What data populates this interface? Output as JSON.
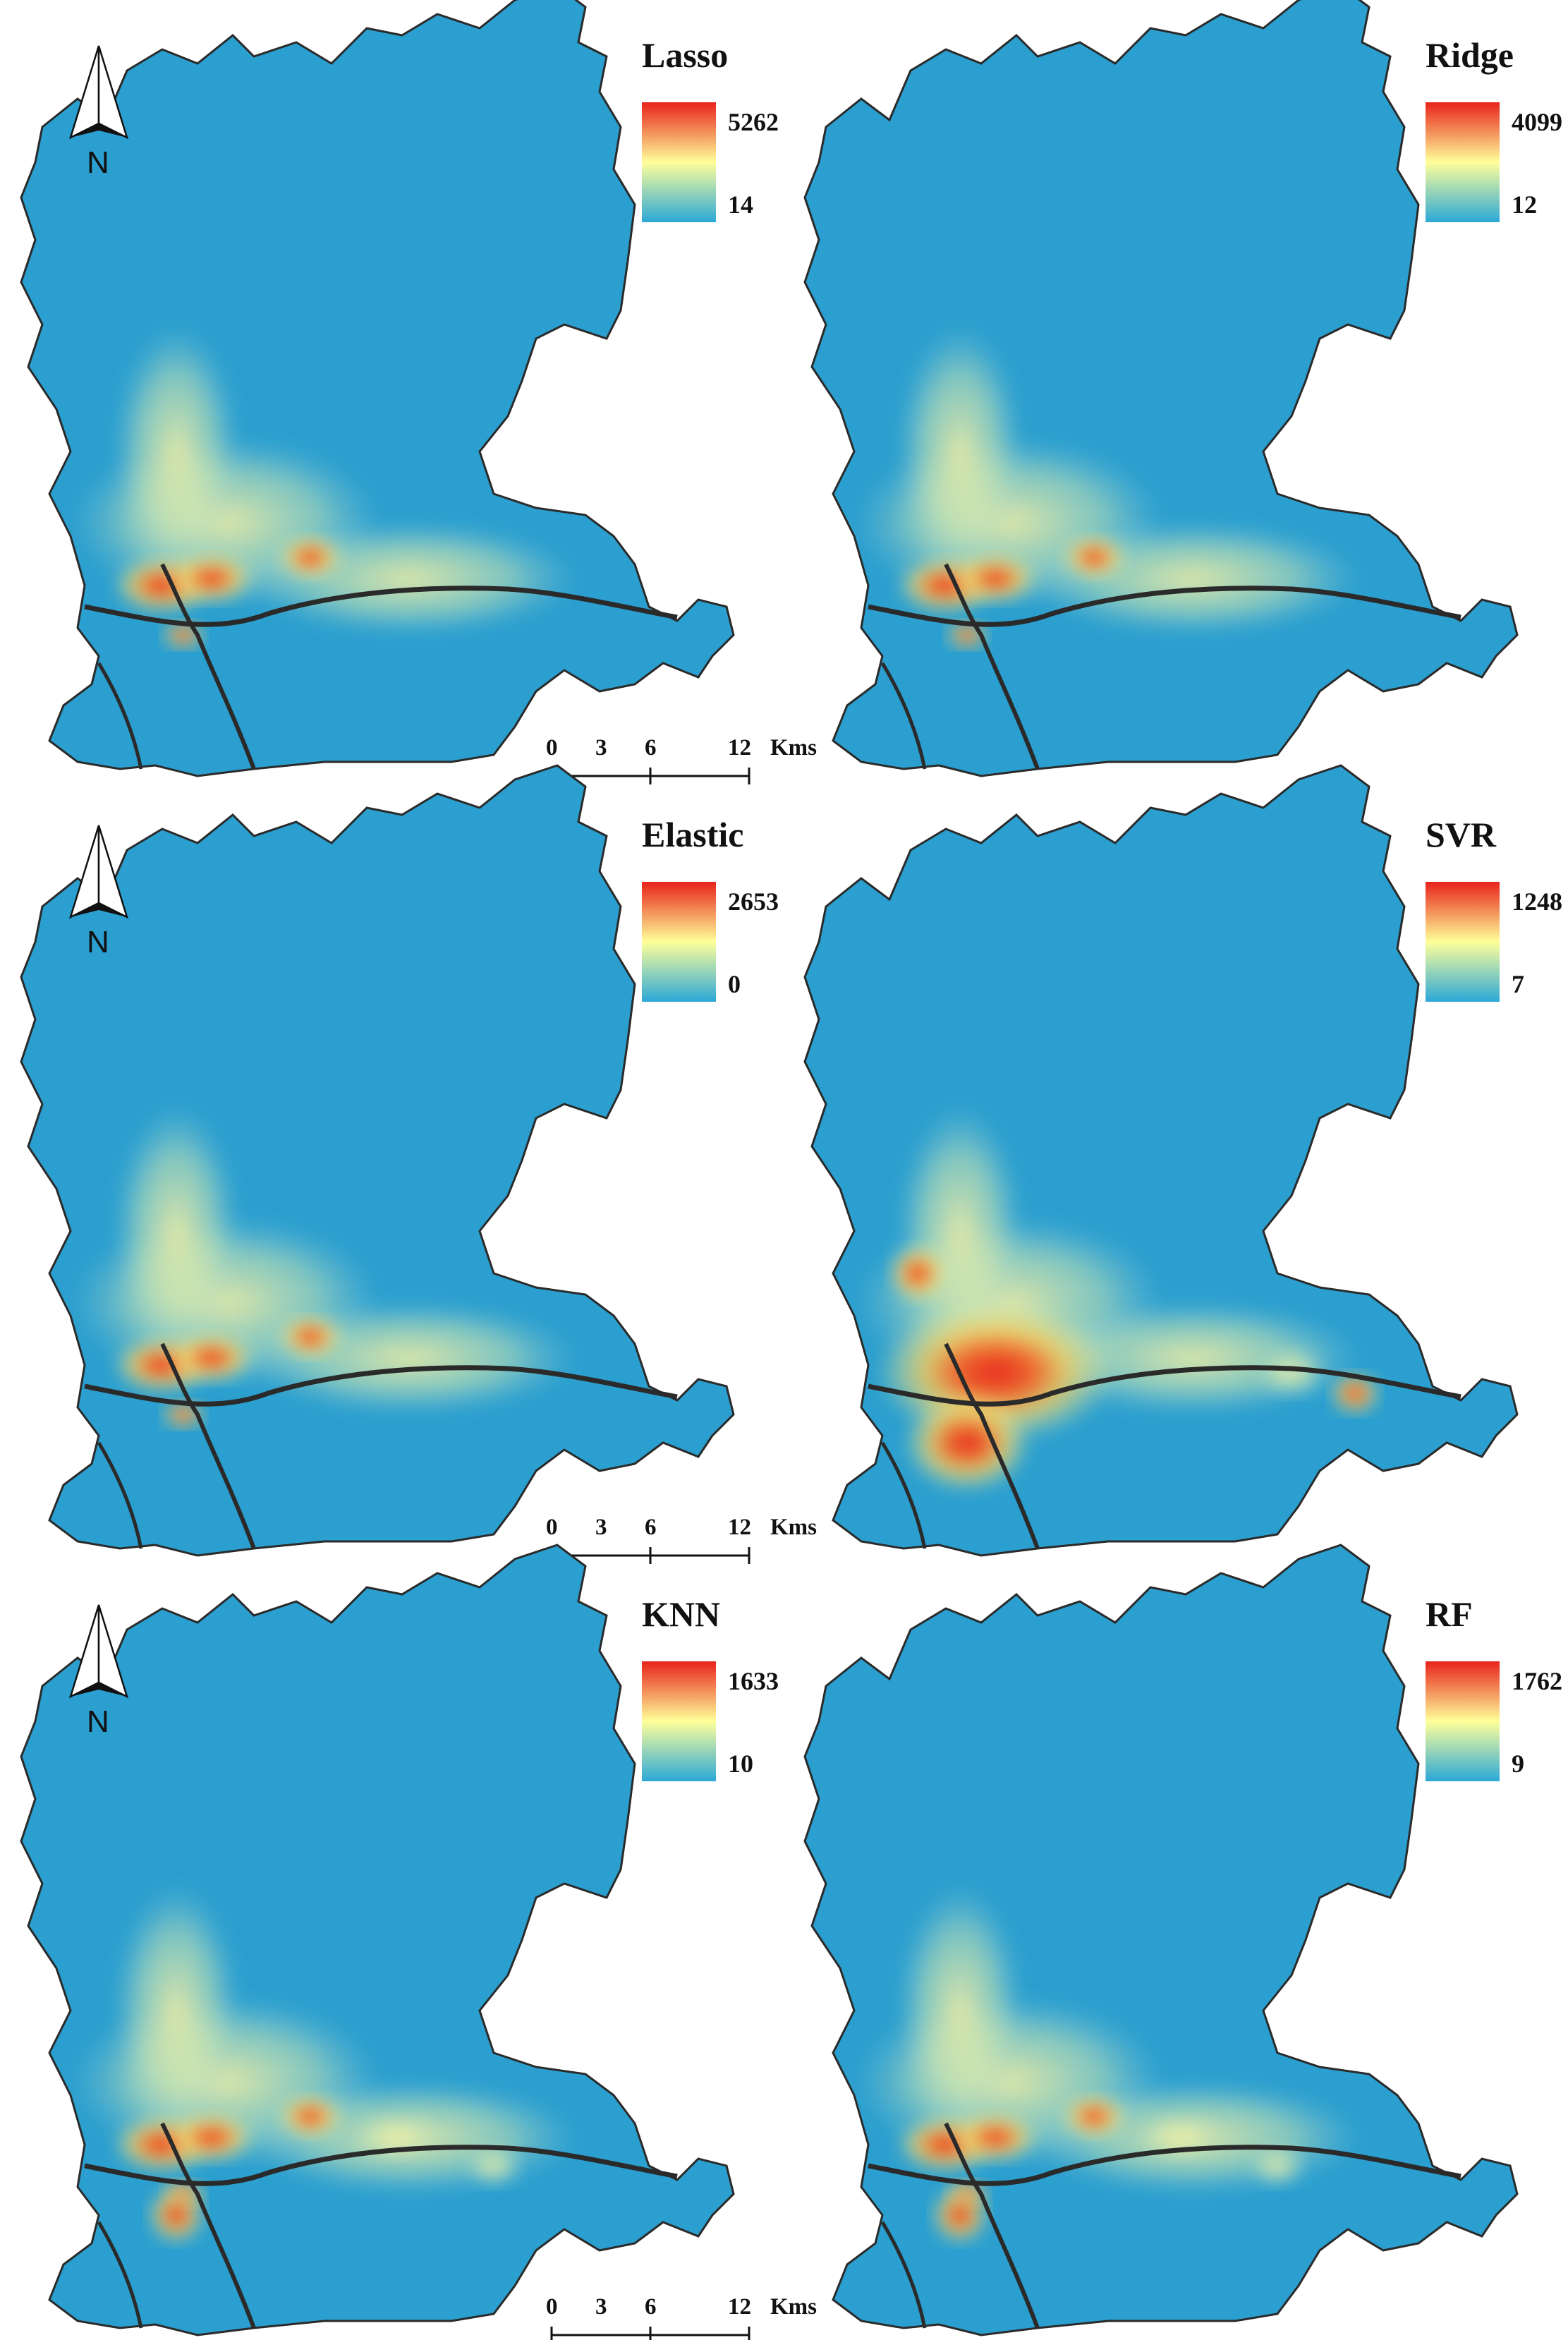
{
  "colors": {
    "background": "#2b9fcf",
    "low": "#2ba8d8",
    "mid": "#ffff99",
    "high": "#e8231b",
    "boundary": "#2a2a2a"
  },
  "north_arrow_label": "N",
  "scale_bar": {
    "ticks": [
      "0",
      "3",
      "6",
      "12"
    ],
    "unit": "Kms"
  },
  "panels": [
    {
      "title": "Lasso",
      "legend_max": "5262",
      "legend_min": "14",
      "row": 0,
      "col": 0,
      "spread": "compact"
    },
    {
      "title": "Ridge",
      "legend_max": "4099",
      "legend_min": "12",
      "row": 0,
      "col": 1,
      "spread": "compact"
    },
    {
      "title": "Elastic",
      "legend_max": "2653",
      "legend_min": "0",
      "row": 1,
      "col": 0,
      "spread": "compact"
    },
    {
      "title": "SVR",
      "legend_max": "1248",
      "legend_min": "7",
      "row": 1,
      "col": 1,
      "spread": "wide"
    },
    {
      "title": "KNN",
      "legend_max": "1633",
      "legend_min": "10",
      "row": 2,
      "col": 0,
      "spread": "medium"
    },
    {
      "title": "RF",
      "legend_max": "1762",
      "legend_min": "9",
      "row": 2,
      "col": 1,
      "spread": "medium"
    }
  ]
}
